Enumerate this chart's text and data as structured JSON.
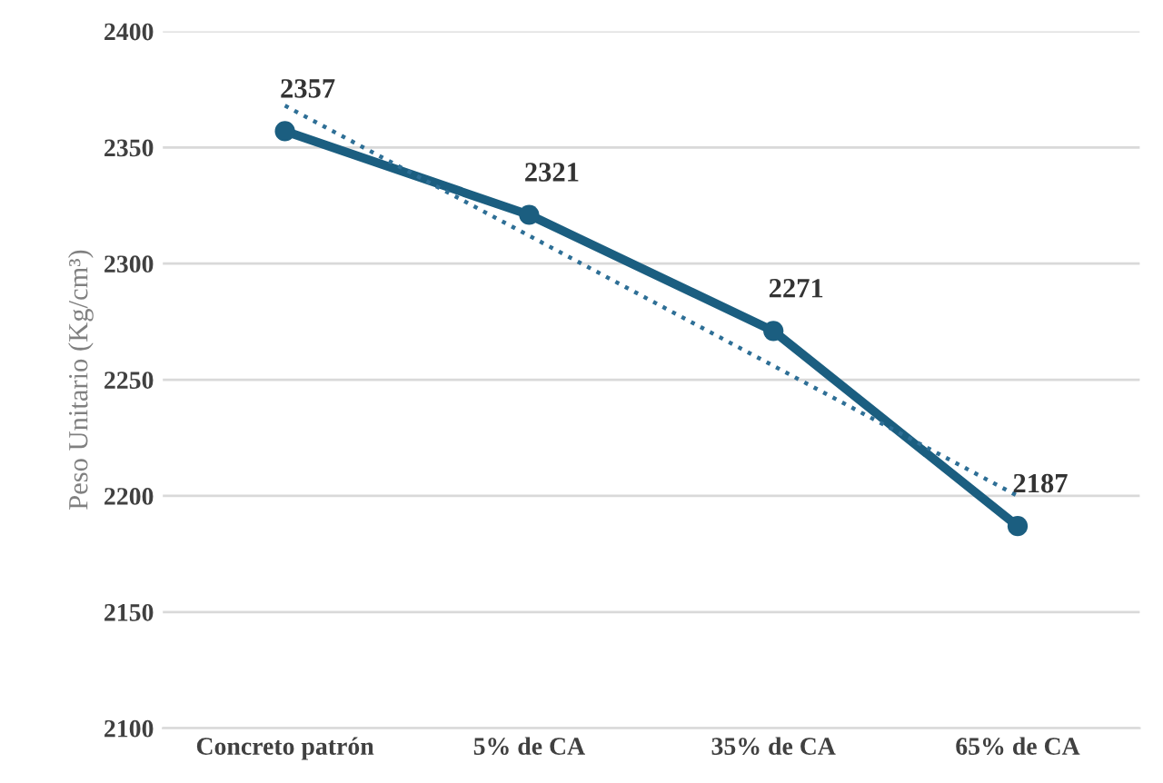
{
  "chart_data": {
    "type": "line",
    "ylabel": "Peso Unitario (Kg/cm³)",
    "categories": [
      "Concreto patrón",
      "5% de CA",
      "35% de CA",
      "65% de CA"
    ],
    "series": [
      {
        "color": "#1b5e80",
        "values": [
          2357,
          2321,
          2271,
          2187
        ],
        "marker": "circle",
        "line_style": "solid",
        "value_labels": [
          "2357",
          "2321",
          "2271",
          "2187"
        ]
      },
      {
        "type": "line",
        "color": "#2e6f96",
        "values": [
          2368,
          2312,
          2256,
          2200
        ],
        "marker": "none",
        "line_style": "dotted"
      }
    ],
    "ylim": [
      2100,
      2400
    ],
    "yticks": [
      2100,
      2150,
      2200,
      2250,
      2300,
      2350,
      2400
    ],
    "grid": "y"
  }
}
